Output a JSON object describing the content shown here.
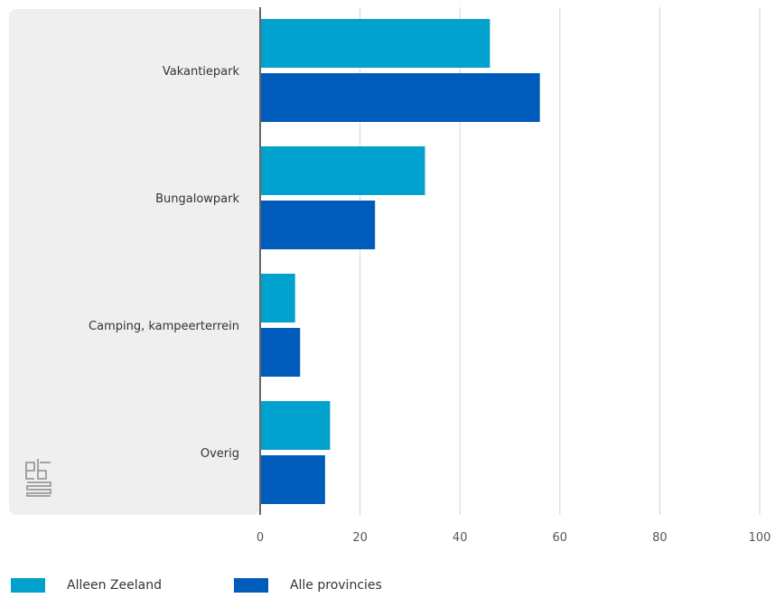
{
  "chart_data": {
    "type": "bar",
    "orientation": "horizontal",
    "categories": [
      "Vakantiepark",
      "Bungalowpark",
      "Camping, kampeerterrein",
      "Overig"
    ],
    "series": [
      {
        "name": "Alleen Zeeland",
        "color": "#00a1cd",
        "values": [
          46,
          33,
          7,
          14
        ]
      },
      {
        "name": "Alle provincies",
        "color": "#005cbb",
        "values": [
          56,
          23,
          8,
          13
        ]
      }
    ],
    "xlim": [
      0,
      100
    ],
    "xticks": [
      0,
      20,
      40,
      60,
      80,
      100
    ],
    "grid": true,
    "legend_position": "bottom-left",
    "logo": "cbs"
  }
}
